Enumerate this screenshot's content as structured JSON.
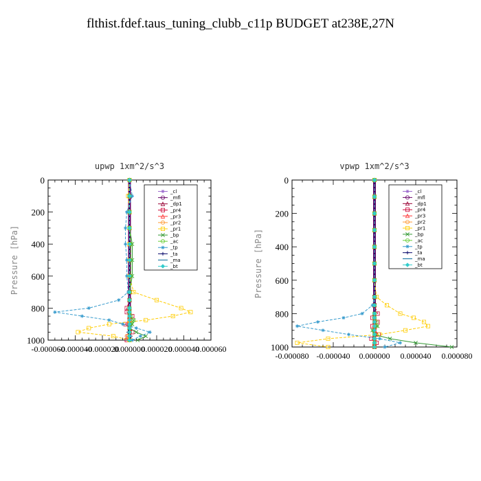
{
  "title": "flthist.fdef.taus_tuning_clubb_c11p  BUDGET at238E,27N",
  "chart_data": [
    {
      "type": "line",
      "title": "upwp   1xm^2/s^3",
      "ylabel": "Pressure [hPa]",
      "ylim": [
        0,
        1000
      ],
      "y_reversed": true,
      "xlim": [
        -6e-05,
        6e-05
      ],
      "y_ticks": [
        "0",
        "200",
        "400",
        "600",
        "800",
        "1000"
      ],
      "x_ticks": [
        "-0.000060",
        "-0.000040",
        "-0.000020",
        "0.000000",
        "0.000020",
        "0.000040",
        "0.000060"
      ],
      "legend_position": "top-right",
      "grid": false,
      "y": [
        0,
        100,
        200,
        300,
        400,
        500,
        600,
        700,
        750,
        800,
        825,
        850,
        875,
        900,
        925,
        950,
        975,
        1000
      ],
      "series": [
        {
          "name": "_cl",
          "color": "#9966cc",
          "values": [
            0,
            0,
            0,
            0,
            0,
            0,
            0,
            0,
            0,
            0,
            0,
            0,
            0,
            0,
            0,
            0,
            0,
            0
          ]
        },
        {
          "name": "_mfl",
          "color": "#660066",
          "values": [
            0,
            0,
            0,
            0,
            0,
            0,
            0,
            0,
            0,
            0,
            0,
            0,
            0,
            0,
            0,
            0,
            0,
            0
          ]
        },
        {
          "name": "_dp1",
          "color": "#990033",
          "values": [
            0,
            0,
            0,
            0,
            0,
            0,
            0,
            0,
            0,
            0,
            0,
            0,
            0,
            0,
            0,
            0,
            0,
            0
          ]
        },
        {
          "name": "_pr4",
          "color": "#cc0033",
          "values": [
            0,
            0,
            0,
            0,
            0,
            0,
            0,
            0,
            0,
            -2e-06,
            -2e-06,
            2e-06,
            0,
            -3e-06,
            0,
            2e-06,
            -1e-06,
            -2e-06
          ]
        },
        {
          "name": "_pr3",
          "color": "#ff3333",
          "values": [
            0,
            0,
            0,
            0,
            0,
            0,
            0,
            0,
            0,
            0,
            0,
            0,
            0,
            -1e-06,
            0,
            0,
            0,
            0
          ]
        },
        {
          "name": "_pr2",
          "color": "#ff9933",
          "values": [
            0,
            0,
            0,
            0,
            0,
            0,
            0,
            0,
            0,
            0,
            0,
            0,
            0,
            0,
            0,
            0,
            -2e-06,
            0
          ]
        },
        {
          "name": "_pr1",
          "color": "#ffcc00",
          "values": [
            0,
            -1e-06,
            0,
            0,
            0,
            0,
            0,
            3e-06,
            2e-05,
            3.8e-05,
            4.5e-05,
            3.2e-05,
            1.2e-05,
            -1.5e-05,
            -3e-05,
            -3.8e-05,
            -1.2e-05,
            0
          ]
        },
        {
          "name": "_bp",
          "color": "#339933",
          "values": [
            0,
            0,
            0,
            0,
            2e-06,
            2e-06,
            2e-06,
            0,
            0,
            0,
            0,
            0,
            3e-06,
            2e-06,
            0,
            5e-06,
            1.2e-05,
            6e-06
          ]
        },
        {
          "name": "_ac",
          "color": "#66cc33",
          "values": [
            0,
            0,
            0,
            0,
            1e-06,
            1e-06,
            1e-06,
            0,
            0,
            0,
            0,
            1e-06,
            3e-06,
            1e-06,
            0,
            0,
            0,
            0
          ]
        },
        {
          "name": "_tp",
          "color": "#3399cc",
          "values": [
            0,
            2e-06,
            -2e-06,
            -3e-06,
            -3e-06,
            -2e-06,
            -2e-06,
            -1e-06,
            -8e-06,
            -3e-05,
            -5.5e-05,
            -3.5e-05,
            -1.5e-05,
            -5e-06,
            5e-06,
            1.5e-05,
            8e-06,
            2e-06
          ]
        },
        {
          "name": "_ta",
          "color": "#000066",
          "values": [
            0,
            0,
            0,
            0,
            0,
            0,
            0,
            0,
            0,
            0,
            0,
            0,
            0,
            0,
            0,
            -1e-06,
            1e-06,
            0
          ]
        },
        {
          "name": "_ma",
          "color": "#006699",
          "values": [
            0,
            0,
            0,
            0,
            0,
            0,
            0,
            0,
            0,
            0,
            0,
            0,
            0,
            0,
            0,
            0,
            0,
            0
          ]
        },
        {
          "name": "_bt",
          "color": "#33cccc",
          "values": [
            0,
            0,
            0,
            0,
            0,
            0,
            0,
            0,
            0,
            0,
            0,
            0,
            0,
            0,
            0,
            0,
            0,
            0
          ]
        }
      ]
    },
    {
      "type": "line",
      "title": "vpwp   1xm^2/s^3",
      "ylabel": "Pressure [hPa]",
      "ylim": [
        0,
        1000
      ],
      "y_reversed": true,
      "xlim": [
        -8e-05,
        8e-05
      ],
      "y_ticks": [
        "0",
        "200",
        "400",
        "600",
        "800",
        "1000"
      ],
      "x_ticks": [
        "-0.000080",
        "-0.000040",
        "0.000000",
        "0.000040",
        "0.000080"
      ],
      "legend_position": "top-right",
      "grid": false,
      "y": [
        0,
        100,
        200,
        300,
        400,
        500,
        600,
        700,
        750,
        800,
        825,
        850,
        875,
        900,
        925,
        950,
        975,
        1000
      ],
      "series": [
        {
          "name": "_cl",
          "color": "#9966cc",
          "values": [
            0,
            0,
            0,
            0,
            0,
            0,
            0,
            0,
            0,
            0,
            0,
            0,
            0,
            0,
            0,
            0,
            0,
            0
          ]
        },
        {
          "name": "_mfl",
          "color": "#660066",
          "values": [
            0,
            0,
            0,
            0,
            0,
            0,
            0,
            0,
            0,
            0,
            0,
            0,
            0,
            0,
            0,
            0,
            0,
            0
          ]
        },
        {
          "name": "_dp1",
          "color": "#990033",
          "values": [
            0,
            0,
            0,
            0,
            0,
            0,
            0,
            0,
            0,
            0,
            0,
            0,
            0,
            0,
            0,
            0,
            0,
            0
          ]
        },
        {
          "name": "_pr4",
          "color": "#cc0033",
          "values": [
            0,
            0,
            0,
            0,
            0,
            0,
            0,
            0,
            0,
            3e-06,
            -2e-06,
            3e-06,
            -2e-06,
            0,
            4e-06,
            -3e-06,
            2e-06,
            0
          ]
        },
        {
          "name": "_pr3",
          "color": "#ff3333",
          "values": [
            0,
            0,
            0,
            0,
            0,
            0,
            0,
            0,
            0,
            0,
            0,
            0,
            0,
            0,
            0,
            0,
            0,
            0
          ]
        },
        {
          "name": "_pr2",
          "color": "#ff9933",
          "values": [
            0,
            0,
            0,
            0,
            0,
            0,
            0,
            0,
            0,
            0,
            0,
            0,
            0,
            0,
            0,
            0,
            0,
            0
          ]
        },
        {
          "name": "_pr1",
          "color": "#ffcc00",
          "values": [
            0,
            0,
            0,
            0,
            0,
            0,
            0,
            2e-06,
            1.2e-05,
            2.5e-05,
            3.8e-05,
            4.8e-05,
            5.2e-05,
            3e-05,
            5e-06,
            -4.5e-05,
            -7.5e-05,
            -4.5e-05
          ]
        },
        {
          "name": "_bp",
          "color": "#339933",
          "values": [
            0,
            0,
            0,
            0,
            0,
            0,
            0,
            0,
            0,
            0,
            0,
            0,
            3e-06,
            -2e-06,
            0,
            1.5e-05,
            4e-05,
            7.5e-05
          ]
        },
        {
          "name": "_ac",
          "color": "#66cc33",
          "values": [
            0,
            0,
            0,
            0,
            0,
            0,
            0,
            0,
            0,
            0,
            0,
            2e-06,
            2e-06,
            -1e-06,
            0,
            0,
            0,
            0
          ]
        },
        {
          "name": "_tp",
          "color": "#3399cc",
          "values": [
            0,
            0,
            0,
            0,
            0,
            0,
            0,
            0,
            -2e-06,
            -1.2e-05,
            -3e-05,
            -5.5e-05,
            -7.5e-05,
            -5e-05,
            -2.5e-05,
            5e-06,
            2.5e-05,
            1e-05
          ]
        },
        {
          "name": "_ta",
          "color": "#000066",
          "values": [
            0,
            0,
            0,
            0,
            0,
            0,
            0,
            0,
            0,
            0,
            0,
            0,
            0,
            0,
            0,
            0,
            0,
            0
          ]
        },
        {
          "name": "_ma",
          "color": "#006699",
          "values": [
            0,
            0,
            0,
            0,
            0,
            0,
            0,
            0,
            0,
            0,
            0,
            0,
            0,
            0,
            0,
            0,
            0,
            0
          ]
        },
        {
          "name": "_bt",
          "color": "#33cccc",
          "values": [
            0,
            0,
            0,
            0,
            0,
            0,
            0,
            0,
            0,
            0,
            0,
            0,
            0,
            0,
            0,
            0,
            0,
            0
          ]
        }
      ]
    }
  ]
}
